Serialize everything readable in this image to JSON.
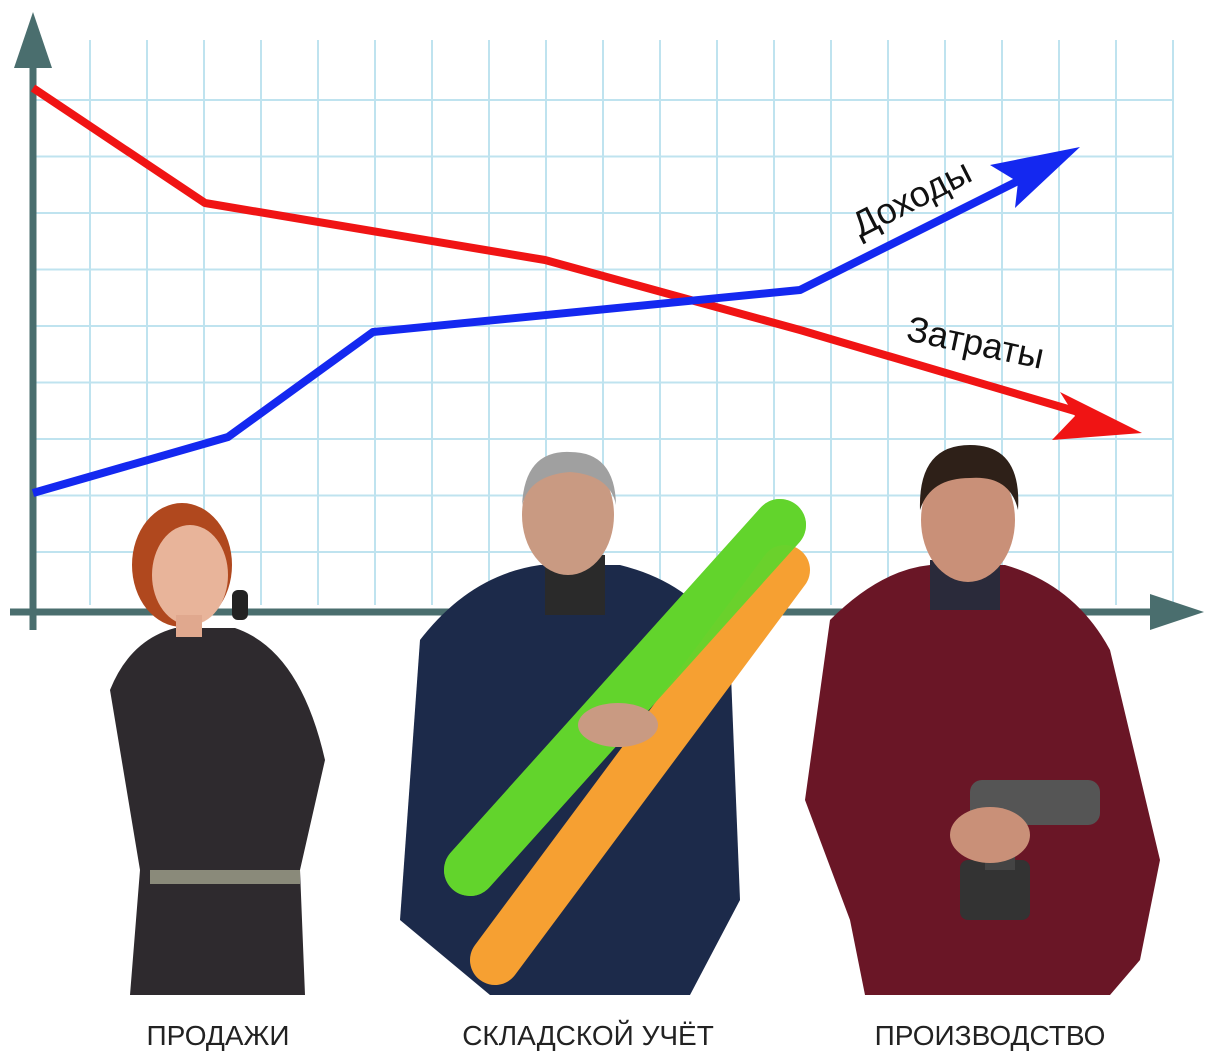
{
  "chart": {
    "line_labels": [
      "Доходы",
      "Затраты"
    ]
  },
  "captions": [
    "ПРОДАЖИ",
    "СКЛАДСКОЙ УЧЁТ",
    "ПРОИЗВОДСТВО"
  ]
}
